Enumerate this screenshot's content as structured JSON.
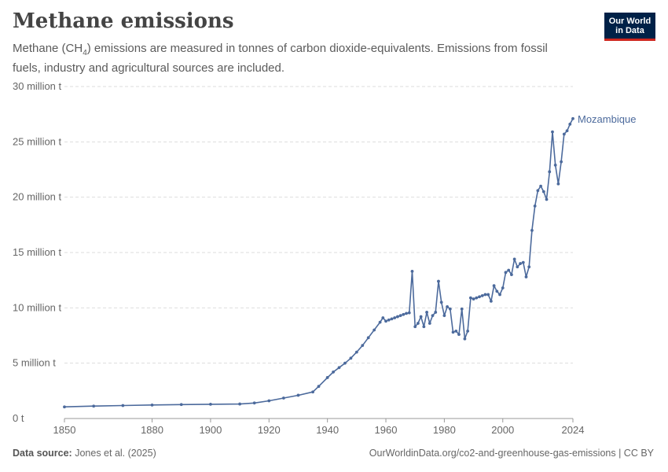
{
  "header": {
    "title": "Methane emissions",
    "subtitle_pre": "Methane (CH",
    "subtitle_sub": "4",
    "subtitle_post": ") emissions are measured in tonnes of carbon dioxide-equivalents. Emissions from fossil fuels, industry and agricultural sources are included."
  },
  "logo": {
    "line1": "Our World",
    "line2": "in Data"
  },
  "footer": {
    "source_label": "Data source:",
    "source_text": "Jones et al. (2025)",
    "url": "OurWorldinData.org/co2-and-greenhouse-gas-emissions | CC BY"
  },
  "colors": {
    "series": "#4c6a9c",
    "grid": "#dddddd",
    "axis": "#666666"
  },
  "chart_data": {
    "type": "line",
    "xlim": [
      1850,
      2024
    ],
    "ylim": [
      0,
      30000000
    ],
    "x_ticks": [
      1850,
      1880,
      1900,
      1920,
      1940,
      1960,
      1980,
      2000,
      2024
    ],
    "x_tick_labels": [
      "1850",
      "1880",
      "1900",
      "1920",
      "1940",
      "1960",
      "1980",
      "2000",
      "2024"
    ],
    "y_ticks": [
      0,
      5000000,
      10000000,
      15000000,
      20000000,
      25000000,
      30000000
    ],
    "y_tick_labels": [
      "0 t",
      "5 million t",
      "10 million t",
      "15 million t",
      "20 million t",
      "25 million t",
      "30 million t"
    ],
    "grid": "horizontal-dashed",
    "series": [
      {
        "name": "Mozambique",
        "x": [
          1850,
          1860,
          1870,
          1880,
          1890,
          1900,
          1910,
          1915,
          1920,
          1925,
          1930,
          1935,
          1937,
          1940,
          1942,
          1944,
          1946,
          1948,
          1950,
          1952,
          1954,
          1956,
          1958,
          1959,
          1960,
          1961,
          1962,
          1963,
          1964,
          1965,
          1966,
          1967,
          1968,
          1969,
          1970,
          1971,
          1972,
          1973,
          1974,
          1975,
          1976,
          1977,
          1978,
          1979,
          1980,
          1981,
          1982,
          1983,
          1984,
          1985,
          1986,
          1987,
          1988,
          1989,
          1990,
          1991,
          1992,
          1993,
          1994,
          1995,
          1996,
          1997,
          1998,
          1999,
          2000,
          2001,
          2002,
          2003,
          2004,
          2005,
          2006,
          2007,
          2008,
          2009,
          2010,
          2011,
          2012,
          2013,
          2014,
          2015,
          2016,
          2017,
          2018,
          2019,
          2020,
          2021,
          2022,
          2023,
          2024
        ],
        "y": [
          1050000,
          1120000,
          1170000,
          1220000,
          1260000,
          1290000,
          1310000,
          1400000,
          1600000,
          1850000,
          2100000,
          2400000,
          2900000,
          3700000,
          4200000,
          4600000,
          5000000,
          5450000,
          6000000,
          6600000,
          7300000,
          8000000,
          8700000,
          9100000,
          8800000,
          8900000,
          9000000,
          9100000,
          9200000,
          9300000,
          9400000,
          9500000,
          9550000,
          13300000,
          8300000,
          8600000,
          9200000,
          8300000,
          9600000,
          8600000,
          9300000,
          9600000,
          12400000,
          10500000,
          9300000,
          10100000,
          9900000,
          7800000,
          7900000,
          7600000,
          9900000,
          7200000,
          7900000,
          10900000,
          10800000,
          10900000,
          11000000,
          11100000,
          11200000,
          11200000,
          10600000,
          12000000,
          11500000,
          11200000,
          11800000,
          13200000,
          13400000,
          13000000,
          14400000,
          13700000,
          14000000,
          14100000,
          12800000,
          13700000,
          17000000,
          19200000,
          20600000,
          21000000,
          20500000,
          19800000,
          22300000,
          25900000,
          22900000,
          21200000,
          23200000,
          25700000,
          26000000,
          26600000,
          27100000
        ]
      }
    ]
  }
}
